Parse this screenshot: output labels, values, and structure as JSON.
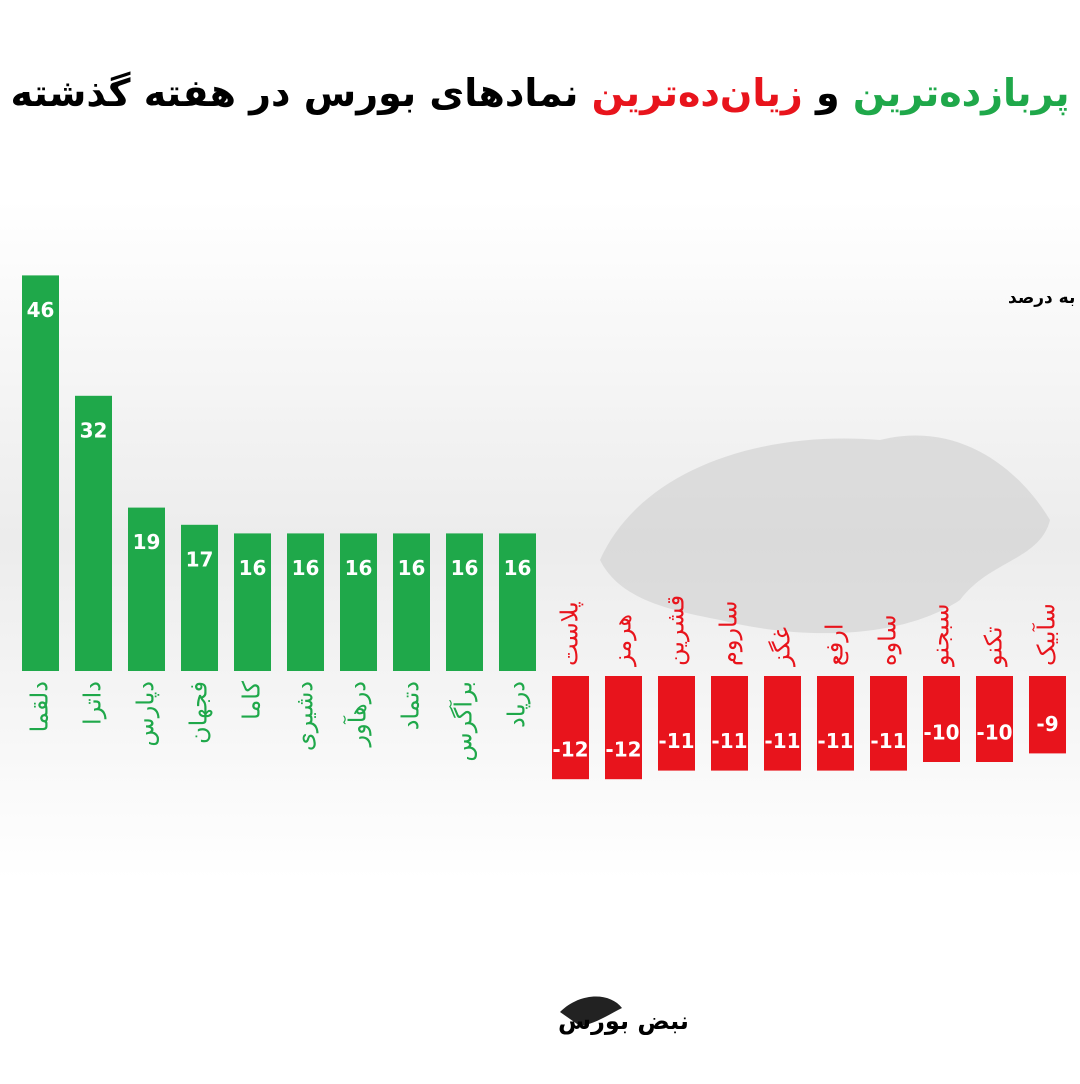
{
  "chart_data": {
    "type": "bar",
    "title_parts": [
      {
        "text": "پربازده‌ترین",
        "color": "#1fa84a"
      },
      {
        "text": "و",
        "color": "#000000"
      },
      {
        "text": "زیان‌ده‌ترین",
        "color": "#e8141c"
      },
      {
        "text": "نمادهای بورس در هفته گذشته",
        "color": "#000000"
      }
    ],
    "note": "اعداد به درصد",
    "categories": [
      "دلقما",
      "داترا",
      "دپارس",
      "فجهان",
      "کاما",
      "دشیری",
      "درهآور",
      "دتماد",
      "برآگرس",
      "درپاد",
      "پلاست",
      "هرمز",
      "قشرین",
      "ساروم",
      "غگز",
      "ارفع",
      "ساوه",
      "سبجنو",
      "تکنو",
      "سآبیک"
    ],
    "values": [
      46,
      32,
      19,
      17,
      16,
      16,
      16,
      16,
      16,
      16,
      -12,
      -12,
      -11,
      -11,
      -11,
      -11,
      -11,
      -10,
      -10,
      -9
    ],
    "colors": {
      "positive": "#1fa84a",
      "negative": "#e8141c"
    },
    "logo_text": "نبض بورس"
  }
}
